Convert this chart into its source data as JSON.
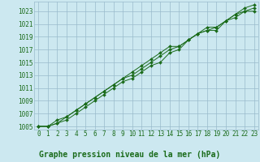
{
  "title": "Graphe pression niveau de la mer (hPa)",
  "bg_color": "#cce8f0",
  "grid_color": "#99bbcc",
  "line_color": "#1a6b1a",
  "marker_color": "#1a6b1a",
  "xlim": [
    -0.5,
    23.5
  ],
  "ylim": [
    1004.5,
    1024.5
  ],
  "yticks": [
    1005,
    1007,
    1009,
    1011,
    1013,
    1015,
    1017,
    1019,
    1021,
    1023
  ],
  "xticks": [
    0,
    1,
    2,
    3,
    4,
    5,
    6,
    7,
    8,
    9,
    10,
    11,
    12,
    13,
    14,
    15,
    16,
    17,
    18,
    19,
    20,
    21,
    22,
    23
  ],
  "series": [
    [
      1005,
      1005,
      1006,
      1006.5,
      1007.5,
      1008.5,
      1009.5,
      1010.5,
      1011.5,
      1012.5,
      1013.5,
      1014.5,
      1015.5,
      1016.5,
      1017.5,
      1017.5,
      1018.5,
      1019.5,
      1020.5,
      1020.5,
      1021.5,
      1022.5,
      1023.5,
      1024.0
    ],
    [
      1005,
      1005,
      1005.5,
      1006.5,
      1007.5,
      1008.5,
      1009.5,
      1010.5,
      1011.5,
      1012.5,
      1013.0,
      1014.0,
      1015.0,
      1016.0,
      1017.0,
      1017.5,
      1018.5,
      1019.5,
      1020.0,
      1020.5,
      1021.5,
      1022.0,
      1023.0,
      1023.5
    ],
    [
      1005,
      1005,
      1005.5,
      1006.0,
      1007.0,
      1008.0,
      1009.0,
      1010.0,
      1011.0,
      1012.0,
      1012.5,
      1013.5,
      1014.5,
      1015.0,
      1016.5,
      1017.0,
      1018.5,
      1019.5,
      1020.0,
      1020.0,
      1021.5,
      1022.5,
      1023.0,
      1023.0
    ]
  ],
  "title_fontsize": 7,
  "tick_fontsize": 5.5,
  "title_color": "#1a6b1a",
  "tick_color": "#1a6b1a"
}
